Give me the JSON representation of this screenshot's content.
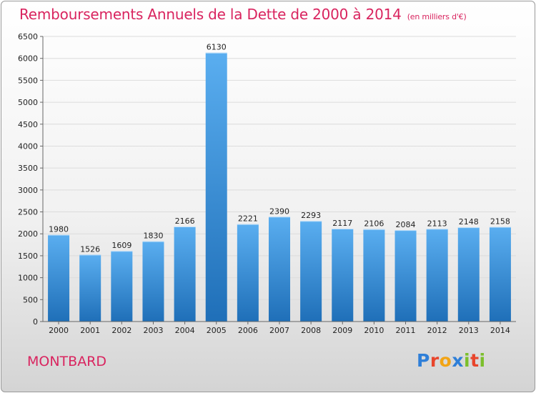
{
  "title": "Remboursements Annuels de la Dette de 2000 à 2014",
  "unit": "(en milliers d'€)",
  "commune": "MONTBARD",
  "logo": {
    "letters": [
      "P",
      "r",
      "o",
      "x",
      "i",
      "t",
      "i"
    ],
    "colors": [
      "#2f7fd8",
      "#e8452c",
      "#f2a415",
      "#2f7fd8",
      "#7cbf2c",
      "#e8452c",
      "#7cbf2c"
    ]
  },
  "colors": {
    "title": "#d9245f",
    "bar_light": "#5aaef0",
    "bar_dark": "#1f6fb8",
    "grid": "#dcdcdc",
    "axis": "#666666",
    "text": "#222222"
  },
  "chart_data": {
    "type": "bar",
    "categories": [
      "2000",
      "2001",
      "2002",
      "2003",
      "2004",
      "2005",
      "2006",
      "2007",
      "2008",
      "2009",
      "2010",
      "2011",
      "2012",
      "2013",
      "2014"
    ],
    "values": [
      1980,
      1526,
      1609,
      1830,
      2166,
      6130,
      2221,
      2390,
      2293,
      2117,
      2106,
      2084,
      2113,
      2148,
      2158
    ],
    "yticks": [
      0,
      500,
      1000,
      1500,
      2000,
      2500,
      3000,
      3500,
      4000,
      4500,
      5000,
      5500,
      6000,
      6500
    ],
    "ylim": [
      0,
      6500
    ],
    "grid": true,
    "data_labels": true
  }
}
